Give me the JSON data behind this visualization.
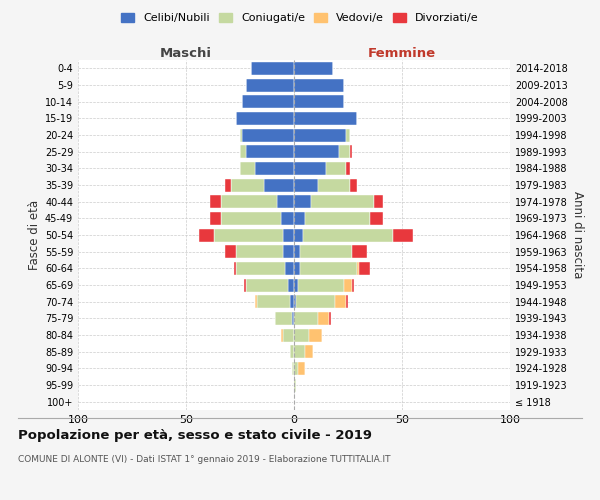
{
  "age_groups": [
    "100+",
    "95-99",
    "90-94",
    "85-89",
    "80-84",
    "75-79",
    "70-74",
    "65-69",
    "60-64",
    "55-59",
    "50-54",
    "45-49",
    "40-44",
    "35-39",
    "30-34",
    "25-29",
    "20-24",
    "15-19",
    "10-14",
    "5-9",
    "0-4"
  ],
  "birth_years": [
    "≤ 1918",
    "1919-1923",
    "1924-1928",
    "1929-1933",
    "1934-1938",
    "1939-1943",
    "1944-1948",
    "1949-1953",
    "1954-1958",
    "1959-1963",
    "1964-1968",
    "1969-1973",
    "1974-1978",
    "1979-1983",
    "1984-1988",
    "1989-1993",
    "1994-1998",
    "1999-2003",
    "2004-2008",
    "2009-2013",
    "2014-2018"
  ],
  "colors": {
    "celibe": "#4472C4",
    "coniugato": "#c5d9a0",
    "vedovo": "#ffc270",
    "divorziato": "#e8383d"
  },
  "maschi": {
    "celibe": [
      0,
      0,
      0,
      0,
      0,
      1,
      2,
      3,
      4,
      5,
      5,
      6,
      8,
      14,
      18,
      22,
      24,
      27,
      24,
      22,
      20
    ],
    "coniugato": [
      0,
      0,
      1,
      2,
      5,
      8,
      15,
      19,
      23,
      22,
      32,
      28,
      26,
      15,
      7,
      3,
      1,
      0,
      0,
      0,
      0
    ],
    "vedovo": [
      0,
      0,
      0,
      0,
      1,
      0,
      1,
      0,
      0,
      0,
      0,
      0,
      0,
      0,
      0,
      0,
      0,
      0,
      0,
      0,
      0
    ],
    "divorziato": [
      0,
      0,
      0,
      0,
      0,
      0,
      0,
      1,
      1,
      5,
      7,
      5,
      5,
      3,
      0,
      0,
      0,
      0,
      0,
      0,
      0
    ]
  },
  "femmine": {
    "nubile": [
      0,
      0,
      0,
      0,
      0,
      0,
      1,
      2,
      3,
      3,
      4,
      5,
      8,
      11,
      15,
      21,
      24,
      29,
      23,
      23,
      18
    ],
    "coniugata": [
      0,
      1,
      2,
      5,
      7,
      11,
      18,
      21,
      26,
      24,
      42,
      30,
      29,
      15,
      9,
      5,
      2,
      0,
      0,
      0,
      0
    ],
    "vedova": [
      0,
      0,
      3,
      4,
      6,
      5,
      5,
      4,
      1,
      0,
      0,
      0,
      0,
      0,
      0,
      0,
      0,
      0,
      0,
      0,
      0
    ],
    "divorziata": [
      0,
      0,
      0,
      0,
      0,
      1,
      1,
      1,
      5,
      7,
      9,
      6,
      4,
      3,
      2,
      1,
      0,
      0,
      0,
      0,
      0
    ]
  },
  "xlim": 100,
  "title_main": "Popolazione per età, sesso e stato civile - 2019",
  "title_sub": "COMUNE DI ALONTE (VI) - Dati ISTAT 1° gennaio 2019 - Elaborazione TUTTITALIA.IT",
  "ylabel_left": "Fasce di età",
  "ylabel_right": "Anni di nascita",
  "xlabel_left": "Maschi",
  "xlabel_right": "Femmine",
  "legend_labels": [
    "Celibi/Nubili",
    "Coniugati/e",
    "Vedovi/e",
    "Divorziati/e"
  ],
  "background_color": "#f5f5f5",
  "plot_background": "#ffffff",
  "grid_color": "#cccccc",
  "bar_height": 0.78
}
